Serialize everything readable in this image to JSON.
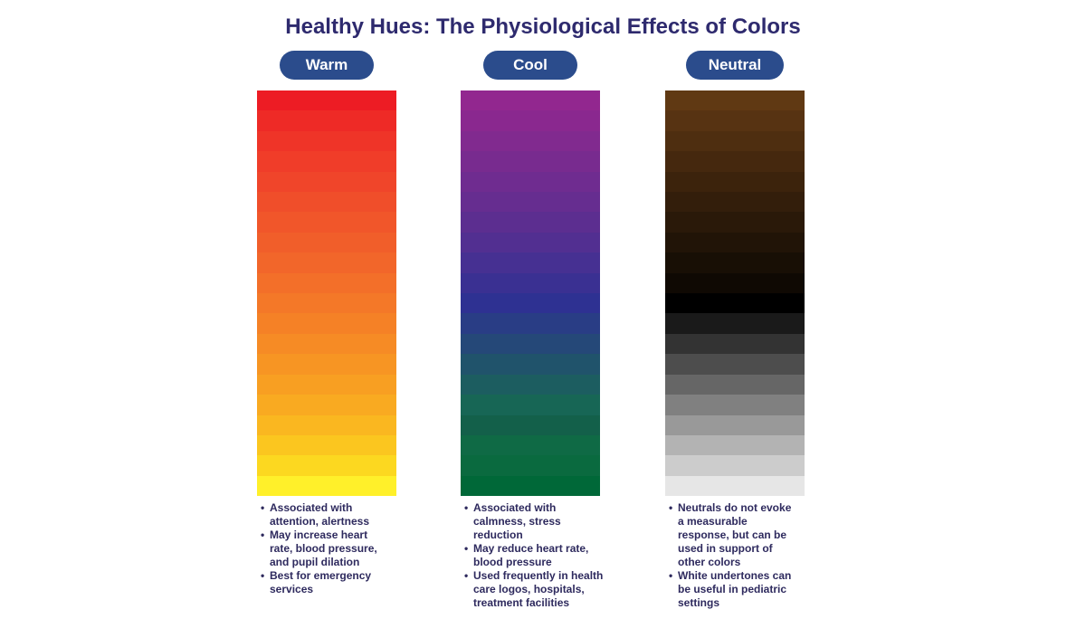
{
  "title": "Healthy Hues: The Physiological Effects of Colors",
  "columns": [
    {
      "label": "Warm",
      "swatches": [
        "#ed1c24",
        "#ee2a26",
        "#ef3428",
        "#f03d29",
        "#f0452a",
        "#f04e2a",
        "#f1562a",
        "#f15e2a",
        "#f2662a",
        "#f36f29",
        "#f47828",
        "#f58126",
        "#f68b25",
        "#f79523",
        "#f89f22",
        "#f9aa21",
        "#fab720",
        "#fbc61f",
        "#fcd820",
        "#fff02a"
      ],
      "bullets": [
        "Associated with attention, alertness",
        "May increase heart rate, blood pressure, and pupil dilation",
        "Best for emergency services"
      ]
    },
    {
      "label": "Cool",
      "swatches": [
        "#92278f",
        "#8a288f",
        "#812a8f",
        "#782b8f",
        "#6f2c90",
        "#662d90",
        "#5c2e90",
        "#522f91",
        "#463092",
        "#3a3092",
        "#2e3192",
        "#293d85",
        "#254878",
        "#20536b",
        "#1c5d60",
        "#176655",
        "#13604a",
        "#0f6a45",
        "#0a6a3f",
        "#006838"
      ],
      "bullets": [
        "Associated with calmness, stress reduction",
        "May reduce heart rate, blood pressure",
        "Used frequently in health care logos, hospitals, treatment facilities"
      ]
    },
    {
      "label": "Neutral",
      "swatches": [
        "#603913",
        "#573312",
        "#4e2e10",
        "#45280e",
        "#3c230c",
        "#331e0b",
        "#2a1909",
        "#211407",
        "#180f05",
        "#0f0903",
        "#000000",
        "#1a1a1a",
        "#333333",
        "#4d4d4d",
        "#666666",
        "#808080",
        "#999999",
        "#b3b3b3",
        "#cccccc",
        "#e6e6e6"
      ],
      "bullets": [
        "Neutrals do not evoke a measurable response, but can be used in support of other colors",
        "White undertones can be useful in pediatric settings"
      ]
    }
  ]
}
